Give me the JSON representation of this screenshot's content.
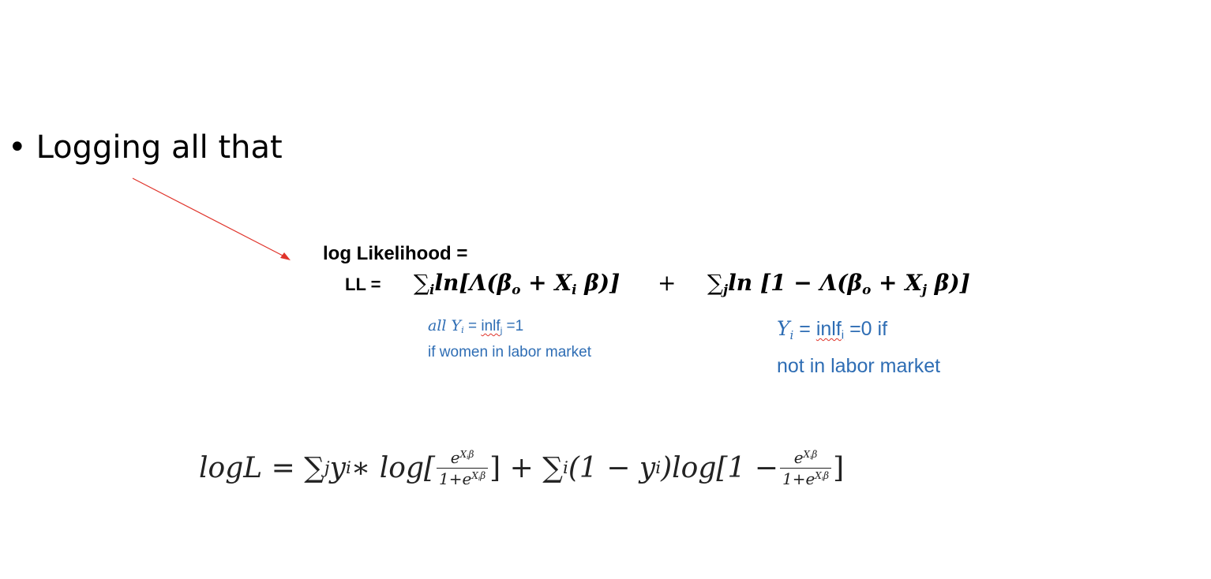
{
  "bullet": {
    "symbol": "•",
    "text": "Logging all that"
  },
  "colors": {
    "arrow": "#e0342b",
    "note": "#2e6db4",
    "squiggle": "#e0342b"
  },
  "equation": {
    "title": "log Likelihood =",
    "ll_label": "LL =",
    "term1_prefix": "∑",
    "term1_sub": "i",
    "term1_text": "ln[Λ(β",
    "term1_beta_sub": "o",
    "term1_mid": " + X",
    "term1_x_sub": "i",
    "term1_end": " β)]",
    "plus": "+",
    "term2_prefix": "∑",
    "term2_sub": "j",
    "term2_text": "ln [1 − Λ(β",
    "term2_beta_sub": "o",
    "term2_mid": " + X",
    "term2_x_sub": "j",
    "term2_end": " β)]"
  },
  "note_left": {
    "line1_italic": "all Y",
    "line1_sub": "i",
    "line1_eq": " = ",
    "line1_word": "inlf",
    "line1_word_sub": "j",
    "line1_rest": " =1",
    "line2": "if women  in labor market"
  },
  "note_right": {
    "line1_italic": "Y",
    "line1_sub": "i",
    "line1_eq": " = ",
    "line1_word": "inlf",
    "line1_word_sub": "i",
    "line1_rest": "  =0   if",
    "line2": "not in labor market"
  },
  "bottom_equation": {
    "lhs": "logL = ∑",
    "sum1_sub": "j",
    "part1": " y",
    "part1_sub": "i",
    "part1_rest": " ∗ log[",
    "frac1_num": "e",
    "frac1_num_sup": "X",
    "frac1_num_sup_sub": "i",
    "frac1_num_beta": "β",
    "frac1_den": "1+e",
    "frac1_den_sup": "X",
    "frac1_den_sup_sub": "i",
    "frac1_den_beta": "β",
    "mid": "] + ∑",
    "sum2_sub": "i",
    "part2": "(1 − y",
    "part2_sub": "i",
    "part2_rest": ")log[1 − ",
    "frac2_num": "e",
    "frac2_num_sup": "X",
    "frac2_num_sup_sub": "i",
    "frac2_num_beta": "β",
    "frac2_den": "1+e",
    "frac2_den_sup": "X",
    "frac2_den_sup_sub": "i",
    "frac2_den_beta": "β",
    "end": "]"
  }
}
